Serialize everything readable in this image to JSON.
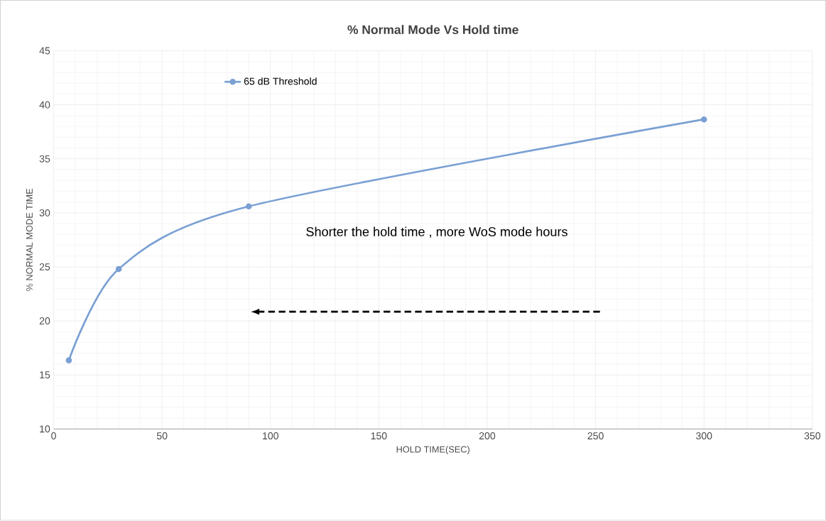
{
  "chart_data": {
    "type": "line",
    "title": "% Normal Mode Vs Hold time",
    "xlabel": "HOLD TIME(SEC)",
    "ylabel": "% NORMAL MODE TIME",
    "x": [
      7,
      30,
      90,
      300
    ],
    "series": [
      {
        "name": "65 dB Threshold",
        "color": "#7aa0d4",
        "values": [
          16.35,
          24.8,
          30.6,
          38.65
        ]
      }
    ],
    "xlim": [
      0,
      350
    ],
    "ylim": [
      10,
      45
    ],
    "xticks": [
      0,
      50,
      100,
      150,
      200,
      250,
      300,
      350
    ],
    "yticks": [
      10,
      15,
      20,
      25,
      30,
      35,
      40,
      45
    ],
    "grid": true,
    "legend": "top left",
    "marker": "circle",
    "line_style": "solid",
    "annotations": [
      "Shorter the hold time , more WoS mode hours"
    ]
  }
}
